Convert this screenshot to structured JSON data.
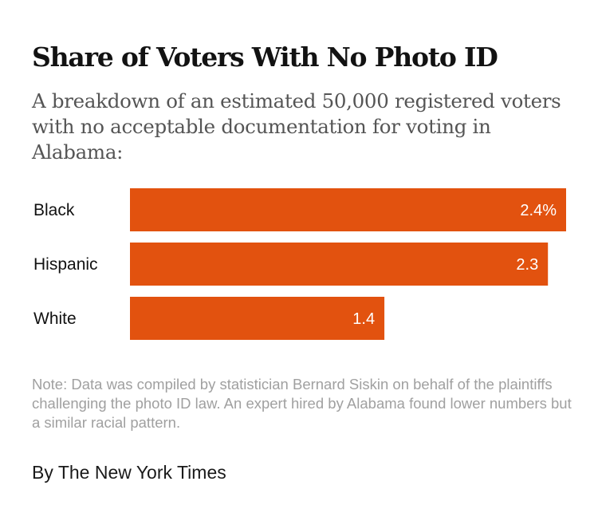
{
  "chart_data": {
    "type": "bar",
    "orientation": "horizontal",
    "title": "Share of Voters With No Photo ID",
    "subtitle": "A breakdown of an estimated 50,000 registered voters with no acceptable documentation for voting in Alabama:",
    "categories": [
      "Black",
      "Hispanic",
      "White"
    ],
    "values": [
      2.4,
      2.3,
      1.4
    ],
    "value_labels": [
      "2.4%",
      "2.3",
      "1.4"
    ],
    "unit": "%",
    "xlim": [
      0,
      2.4
    ],
    "xlabel": "",
    "ylabel": "",
    "grid": false,
    "bar_color": "#e2520f"
  },
  "note": "Note: Data was compiled by statistician Bernard Siskin on behalf of the plaintiffs challenging the photo ID law. An expert hired by Alabama found lower numbers but a similar racial pattern.",
  "credit": "By The New York Times"
}
